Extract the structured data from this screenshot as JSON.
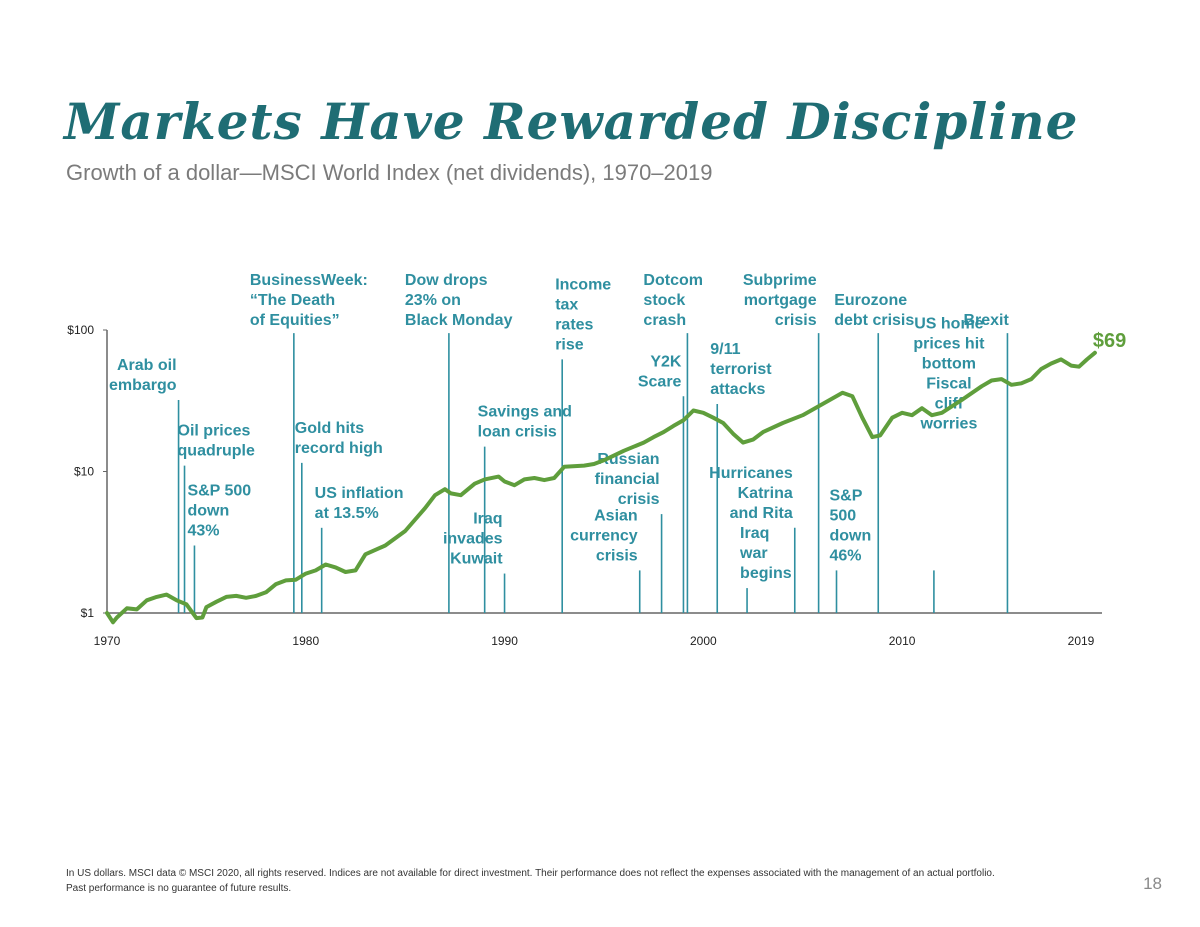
{
  "title": "Markets Have Rewarded Discipline",
  "subtitle": "Growth of a dollar—MSCI World Index (net dividends), 1970–2019",
  "footnote": {
    "line1": "In US dollars. MSCI data © MSCI 2020, all rights reserved. Indices are not available for direct investment. Their performance does not reflect the expenses associated with the management of an actual portfolio.",
    "line2": "Past performance is no guarantee of future results."
  },
  "page_number": "18",
  "colors": {
    "title": "#1f6d74",
    "line": "#5f9e3c",
    "event": "#2f8fa0",
    "axis": "#666666"
  },
  "chart_data": {
    "type": "line",
    "yscale": "log",
    "ylim": [
      1,
      100
    ],
    "xlim": [
      1970,
      2019
    ],
    "y_ticks": [
      {
        "value": 1,
        "label": "$1"
      },
      {
        "value": 10,
        "label": "$10"
      },
      {
        "value": 100,
        "label": "$100"
      }
    ],
    "x_ticks": [
      {
        "value": 1970,
        "label": "1970"
      },
      {
        "value": 1980,
        "label": "1980"
      },
      {
        "value": 1990,
        "label": "1990"
      },
      {
        "value": 2000,
        "label": "2000"
      },
      {
        "value": 2010,
        "label": "2010"
      },
      {
        "value": 2019,
        "label": "2019"
      }
    ],
    "end_label": "$69",
    "series": [
      {
        "x": [
          1970.0,
          1970.3,
          1970.5,
          1971.0,
          1971.5,
          1972.0,
          1972.5,
          1973.0,
          1973.5,
          1974.0,
          1974.5,
          1974.8,
          1975.0,
          1975.5,
          1976.0,
          1976.5,
          1977.0,
          1977.5,
          1978.0,
          1978.5,
          1979.0,
          1979.5,
          1980.0,
          1980.5,
          1981.0,
          1981.5,
          1982.0,
          1982.5,
          1983.0,
          1984.0,
          1985.0,
          1986.0,
          1986.5,
          1987.0,
          1987.3,
          1987.8,
          1988.5,
          1989.0,
          1989.7,
          1990.0,
          1990.5,
          1991.0,
          1991.5,
          1992.0,
          1992.5,
          1993.0,
          1994.0,
          1994.5,
          1995.0,
          1996.0,
          1997.0,
          1997.5,
          1998.0,
          1998.5,
          1999.0,
          1999.5,
          2000.0,
          2000.5,
          2001.0,
          2001.5,
          2002.0,
          2002.5,
          2003.0,
          2004.0,
          2005.0,
          2006.0,
          2007.0,
          2007.5,
          2008.0,
          2008.5,
          2008.9,
          2009.5,
          2010.0,
          2010.5,
          2011.0,
          2011.5,
          2012.0,
          2013.0,
          2014.0,
          2014.5,
          2015.0,
          2015.5,
          2016.0,
          2016.5,
          2017.0,
          2017.5,
          2018.0,
          2018.5,
          2018.9,
          2019.3,
          2019.7
        ],
        "y": [
          1.0,
          0.86,
          0.93,
          1.08,
          1.06,
          1.23,
          1.3,
          1.35,
          1.23,
          1.15,
          0.92,
          0.93,
          1.1,
          1.2,
          1.3,
          1.32,
          1.28,
          1.32,
          1.4,
          1.6,
          1.7,
          1.72,
          1.9,
          2.0,
          2.2,
          2.1,
          1.95,
          2.0,
          2.6,
          3.0,
          3.8,
          5.5,
          6.8,
          7.5,
          7.0,
          6.8,
          8.2,
          8.8,
          9.2,
          8.5,
          8.0,
          8.8,
          9.0,
          8.7,
          9.0,
          10.8,
          11.0,
          11.3,
          12.0,
          14.0,
          16.0,
          17.5,
          19.0,
          21.0,
          23.0,
          27.0,
          26.0,
          24.0,
          22.0,
          18.5,
          16.0,
          16.8,
          19.0,
          22.0,
          25.0,
          30.0,
          36.0,
          34.0,
          24.0,
          17.5,
          18.0,
          24.0,
          26.0,
          25.0,
          28.0,
          25.0,
          26.0,
          32.0,
          40.0,
          44.0,
          45.0,
          41.0,
          42.0,
          45.0,
          53.0,
          58.0,
          62.0,
          56.0,
          55.0,
          62.0,
          69.0
        ]
      }
    ],
    "events": [
      {
        "x": 1973.6,
        "y": 32,
        "lines": [
          "Arab oil",
          "embargo"
        ],
        "anchor": "end"
      },
      {
        "x": 1973.9,
        "y": 11,
        "lines": [
          "Oil prices",
          "quadruple"
        ],
        "anchor": "start"
      },
      {
        "x": 1974.4,
        "y": 3.0,
        "lines": [
          "S&P 500",
          "down",
          "43%"
        ],
        "anchor": "start"
      },
      {
        "x": 1979.4,
        "y": 95,
        "lines": [
          "BusinessWeek:",
          "“The Death",
          "of Equities”"
        ],
        "anchor": "start"
      },
      {
        "x": 1979.8,
        "y": 11.5,
        "lines": [
          "Gold hits",
          "record high"
        ],
        "anchor": "start"
      },
      {
        "x": 1980.8,
        "y": 4.0,
        "lines": [
          "US inflation",
          "at 13.5%"
        ],
        "anchor": "start"
      },
      {
        "x": 1987.2,
        "y": 95,
        "lines": [
          "Dow drops",
          "23% on",
          "Black Monday"
        ],
        "anchor": "start"
      },
      {
        "x": 1989.0,
        "y": 15,
        "lines": [
          "Savings and",
          "loan crisis"
        ],
        "anchor": "start"
      },
      {
        "x": 1990.0,
        "y": 1.9,
        "lines": [
          "Iraq",
          "invades",
          "Kuwait"
        ],
        "anchor": "end"
      },
      {
        "x": 1992.9,
        "y": 62,
        "lines": [
          "Income",
          "tax",
          "rates",
          "rise"
        ],
        "anchor": "start"
      },
      {
        "x": 1996.8,
        "y": 2.0,
        "lines": [
          "Asian",
          "currency",
          "crisis"
        ],
        "anchor": "end"
      },
      {
        "x": 1997.9,
        "y": 5.0,
        "lines": [
          "Russian",
          "financial",
          "crisis"
        ],
        "anchor": "end"
      },
      {
        "x": 1999.0,
        "y": 34,
        "lines": [
          "Y2K",
          "Scare"
        ],
        "anchor": "end"
      },
      {
        "x": 1999.2,
        "y": 95,
        "lines": [
          "Dotcom",
          "stock",
          "crash"
        ],
        "anchor": "start"
      },
      {
        "x": 2000.7,
        "y": 30,
        "lines": [
          "9/11",
          "terrorist",
          "attacks"
        ],
        "anchor": "start"
      },
      {
        "x": 2002.2,
        "y": 1.5,
        "lines": [
          "Iraq",
          "war",
          "begins"
        ],
        "anchor": "start"
      },
      {
        "x": 2004.6,
        "y": 4.0,
        "lines": [
          "Hurricanes",
          "Katrina",
          "and Rita"
        ],
        "anchor": "end"
      },
      {
        "x": 2005.8,
        "y": 95,
        "lines": [
          "Subprime",
          "mortgage",
          "crisis"
        ],
        "anchor": "end"
      },
      {
        "x": 2006.7,
        "y": 2.0,
        "lines": [
          "S&P",
          "500",
          "down",
          "46%"
        ],
        "anchor": "start"
      },
      {
        "x": 2008.8,
        "y": 95,
        "lines": [
          "Eurozone",
          "debt crisis"
        ],
        "anchor": "start"
      },
      {
        "x": 2011.6,
        "y": 2.0,
        "lines": [
          "US home",
          "prices hit",
          "bottom",
          "",
          "Fiscal",
          "cliff",
          "worries"
        ],
        "anchor": "middle"
      },
      {
        "x": 2015.3,
        "y": 95,
        "lines": [
          "Brexit"
        ],
        "anchor": "start"
      }
    ]
  }
}
